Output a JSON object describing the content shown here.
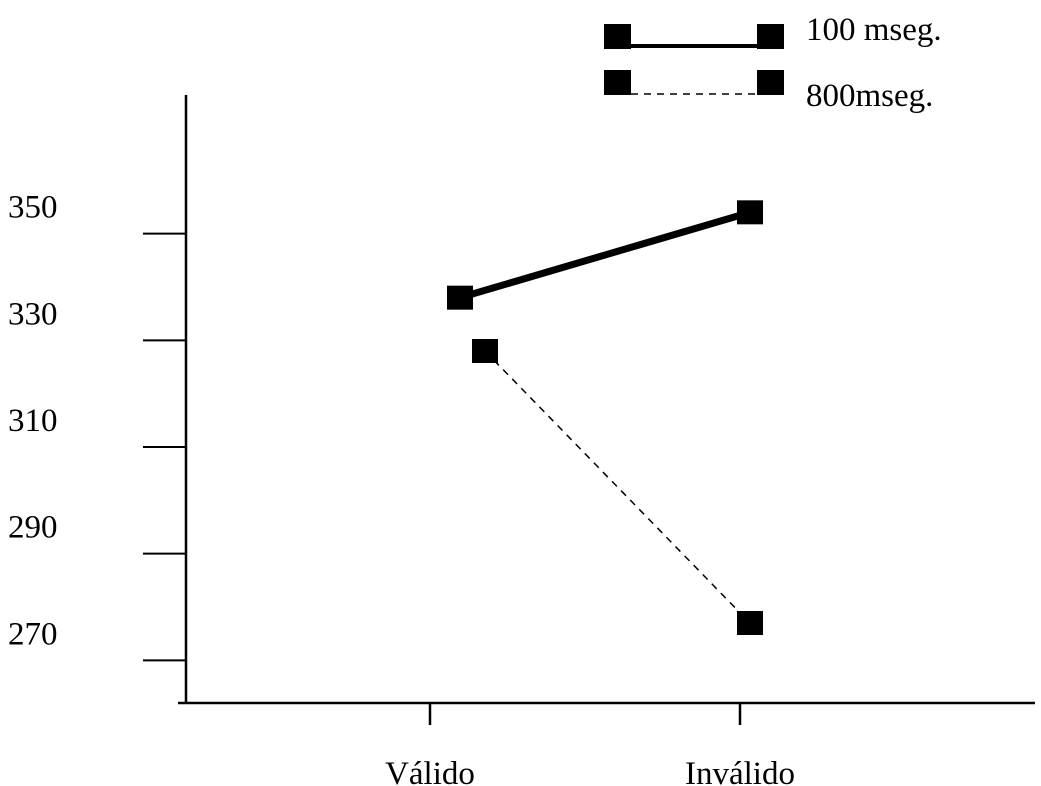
{
  "chart_data": {
    "type": "line",
    "categories": [
      "Válido",
      "Inválido"
    ],
    "series": [
      {
        "name": "100 mseg.",
        "values": [
          338,
          354
        ],
        "style": "solid"
      },
      {
        "name": "800mseg.",
        "values": [
          328,
          277
        ],
        "style": "dashed"
      }
    ],
    "y_ticks": [
      270,
      290,
      310,
      330,
      350
    ],
    "ylim": [
      262,
      376
    ],
    "grid": false,
    "legend_position": "top-right",
    "colors": {
      "line": "#000000",
      "marker": "#000000",
      "background": "#ffffff"
    }
  }
}
